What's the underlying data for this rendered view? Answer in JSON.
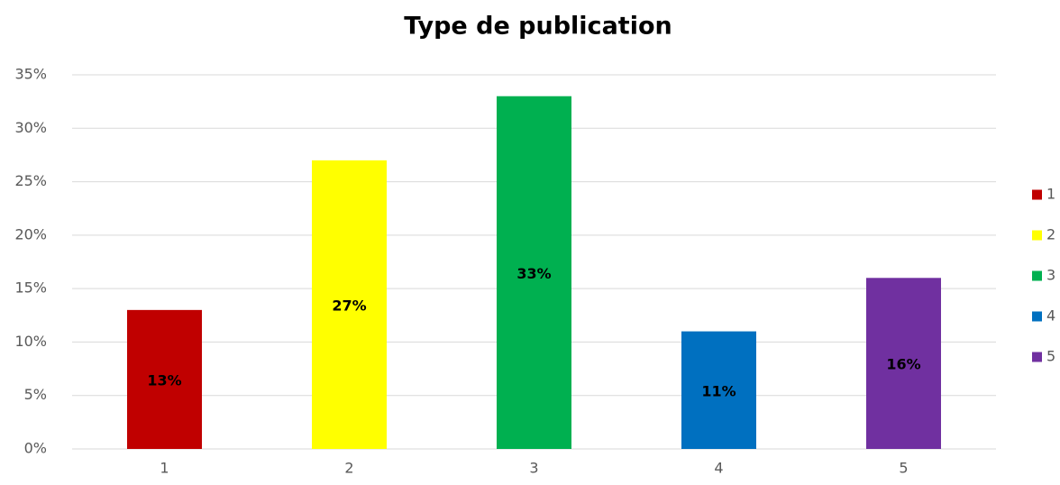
{
  "chart_data": {
    "type": "bar",
    "title": "Type de publication",
    "categories": [
      "1",
      "2",
      "3",
      "4",
      "5"
    ],
    "values": [
      13,
      27,
      33,
      11,
      16
    ],
    "value_labels": [
      "13%",
      "27%",
      "33%",
      "11%",
      "16%"
    ],
    "colors": [
      "#c00000",
      "#ffff00",
      "#00b050",
      "#0070c0",
      "#7030a0"
    ],
    "ylim": [
      0,
      35
    ],
    "yticks": [
      {
        "value": 0,
        "label": "0%"
      },
      {
        "value": 5,
        "label": "5%"
      },
      {
        "value": 10,
        "label": "10%"
      },
      {
        "value": 15,
        "label": "15%"
      },
      {
        "value": 20,
        "label": "20%"
      },
      {
        "value": 25,
        "label": "25%"
      },
      {
        "value": 30,
        "label": "30%"
      },
      {
        "value": 35,
        "label": "35%"
      }
    ],
    "grid": true,
    "legend": "right"
  }
}
